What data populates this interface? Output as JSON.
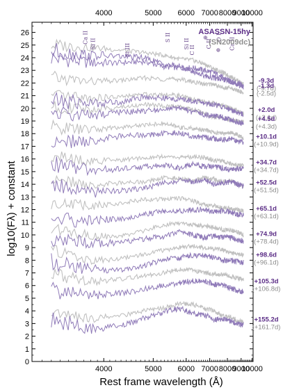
{
  "chart_data": {
    "type": "line",
    "title": "",
    "xlabel": "Rest frame wavelength (Å)",
    "ylabel": "log10(Fλ) + constant",
    "xlim": [
      3100,
      10100
    ],
    "ylim": [
      0,
      26.8
    ],
    "x_scale": "reciprocal",
    "x_ticks": [
      4000,
      5000,
      6000,
      7000,
      8000,
      9000,
      10000
    ],
    "x_tick_labels": [
      "4000",
      "5000",
      "6000",
      "7000",
      "8000",
      "9000",
      "10000"
    ],
    "y_ticks": [
      0,
      1,
      2,
      3,
      4,
      5,
      6,
      7,
      8,
      9,
      10,
      11,
      12,
      13,
      14,
      15,
      16,
      17,
      18,
      19,
      20,
      21,
      22,
      23,
      24,
      25,
      26
    ],
    "y_tick_labels": [
      "0",
      "1",
      "2",
      "3",
      "4",
      "5",
      "6",
      "7",
      "8",
      "9",
      "10",
      "11",
      "12",
      "13",
      "14",
      "15",
      "16",
      "17",
      "18",
      "19",
      "20",
      "21",
      "22",
      "23",
      "24",
      "25",
      "26"
    ],
    "grid": false,
    "legend": {
      "placement": "top-right",
      "entries": [
        {
          "label": "ASASSN-15hy",
          "color": "#5b2d86"
        },
        {
          "label": "(SN2009dc)",
          "color": "#8f8f8f"
        }
      ]
    },
    "line_ids": [
      {
        "label": "Ca II",
        "x": 3750
      },
      {
        "label": "Si II",
        "x": 3860
      },
      {
        "label": "Si III",
        "x": 4460
      },
      {
        "label": "S II",
        "x": 5450
      },
      {
        "label": "Si II",
        "x": 6080
      },
      {
        "label": "C II",
        "x": 6300
      },
      {
        "label": "⊕",
        "x": 6870
      },
      {
        "label": "C II",
        "x": 7050
      },
      {
        "label": "⊕",
        "x": 7550
      },
      {
        "label": "O I",
        "x": 7600
      },
      {
        "label": "Ca II",
        "x": 8460
      }
    ],
    "series": [
      {
        "name": "ASASSN-15hy -9.3d",
        "epoch": "-9.3d",
        "comparison": "(-9.7d)",
        "y": [
          24.0,
          23.6,
          23.6,
          23.7,
          23.3,
          23.2,
          23.2,
          23.0,
          22.8,
          22.4,
          22.1,
          22.0,
          21.8
        ]
      },
      {
        "name": "ASASSN-15hy -1.3d",
        "epoch": "-1.3d",
        "comparison": "(-2.5d)",
        "y": [
          24.5,
          24.2,
          24.1,
          24.0,
          23.5,
          23.3,
          22.9,
          22.6,
          22.4,
          22.3,
          22.1,
          21.9,
          21.7
        ]
      },
      {
        "name": "ASASSN-15hy +2.0d",
        "epoch": "+2.0d",
        "comparison": "(+2.1d)",
        "y": [
          20.6,
          20.4,
          20.5,
          20.9,
          20.8,
          20.7,
          20.6,
          20.4,
          20.3,
          20.1,
          19.9,
          19.7,
          19.5
        ]
      },
      {
        "name": "ASASSN-15hy +4.5d",
        "epoch": "+4.5d",
        "comparison": "(+4.3d)",
        "y": [
          19.6,
          19.4,
          19.7,
          19.8,
          19.9,
          20.0,
          19.7,
          19.5,
          19.4,
          19.3,
          19.1,
          18.9,
          18.8
        ]
      },
      {
        "name": "ASASSN-15hy +10.1d",
        "epoch": "+10.1d",
        "comparison": "(+10.9d)",
        "y": [
          17.3,
          17.4,
          17.8,
          17.9,
          18.0,
          18.1,
          17.8,
          17.7,
          17.6,
          17.5,
          17.6,
          17.4,
          17.3
        ]
      },
      {
        "name": "ASASSN-15hy +34.7d",
        "epoch": "+34.7d",
        "comparison": "(+34.7d)",
        "y": [
          15.6,
          15.1,
          15.2,
          15.4,
          15.5,
          15.3,
          15.6,
          15.4,
          15.4,
          15.3,
          15.1,
          15.2,
          15.3
        ]
      },
      {
        "name": "ASASSN-15hy +52.5d",
        "epoch": "+52.5d",
        "comparison": "(+51.5d)",
        "y": [
          14.1,
          13.3,
          13.5,
          13.7,
          14.1,
          14.3,
          14.2,
          14.3,
          14.0,
          14.1,
          14.2,
          14.0,
          13.8
        ]
      },
      {
        "name": "ASASSN-15hy +65.1d",
        "epoch": "+65.1d",
        "comparison": "(+63.1d)",
        "y": [
          11.2,
          11.1,
          11.3,
          11.6,
          11.9,
          11.9,
          12.0,
          12.0,
          11.8,
          11.9,
          11.8,
          11.6,
          11.6
        ]
      },
      {
        "name": "ASASSN-15hy +74.9d",
        "epoch": "+74.9d",
        "comparison": "(+78.4d)",
        "y": [
          9.8,
          9.3,
          9.4,
          9.7,
          9.9,
          10.2,
          10.0,
          9.8,
          9.9,
          9.8,
          9.8,
          9.6,
          9.5
        ]
      },
      {
        "name": "ASASSN-15hy +98.6d",
        "epoch": "+98.6d",
        "comparison": "(+96.1d)",
        "y": [
          7.9,
          7.3,
          7.2,
          7.6,
          8.0,
          8.2,
          8.4,
          8.3,
          8.2,
          8.0,
          8.0,
          7.9,
          7.8
        ]
      },
      {
        "name": "ASASSN-15hy +105.3d",
        "epoch": "+105.3d",
        "comparison": "(+106.8d)",
        "y": [
          5.6,
          5.2,
          5.4,
          5.7,
          6.0,
          6.2,
          6.4,
          6.3,
          6.1,
          6.0,
          5.8,
          5.6,
          5.5
        ]
      },
      {
        "name": "ASASSN-15hy +155.2d",
        "epoch": "+155.2d",
        "comparison": "(+161.7d)",
        "y": [
          3.3,
          2.6,
          2.8,
          3.4,
          3.9,
          4.2,
          3.8,
          3.7,
          3.3,
          3.4,
          3.2,
          3.0,
          2.9
        ]
      }
    ],
    "comparison_series": [
      {
        "y": [
          25.0,
          24.8,
          24.6,
          24.4,
          24.2,
          23.9,
          23.8,
          23.5,
          23.1,
          22.8,
          22.5,
          22.2,
          21.9
        ]
      },
      {
        "y": [
          22.4,
          22.1,
          22.2,
          22.4,
          22.3,
          22.3,
          22.1,
          21.9,
          21.9,
          21.6,
          21.6,
          21.4,
          21.2
        ]
      },
      {
        "y": [
          20.9,
          20.8,
          20.9,
          21.1,
          21.1,
          21.0,
          20.7,
          20.5,
          20.4,
          20.2,
          20.0,
          19.8,
          19.6
        ]
      },
      {
        "y": [
          20.1,
          19.9,
          20.1,
          20.3,
          20.2,
          20.1,
          19.9,
          19.6,
          19.3,
          19.2,
          19.1,
          19.0,
          18.9
        ]
      },
      {
        "y": [
          18.5,
          18.3,
          18.5,
          18.7,
          18.8,
          18.5,
          18.4,
          18.3,
          18.1,
          18.0,
          18.1,
          17.9,
          17.6
        ]
      },
      {
        "y": [
          16.2,
          15.8,
          15.9,
          16.1,
          16.2,
          16.1,
          16.2,
          16.1,
          15.9,
          15.8,
          15.6,
          15.5,
          15.5
        ]
      },
      {
        "y": [
          14.4,
          13.9,
          14.1,
          14.2,
          14.5,
          14.5,
          14.3,
          14.5,
          14.4,
          14.2,
          14.3,
          14.0,
          13.8
        ]
      },
      {
        "y": [
          12.6,
          12.3,
          12.5,
          12.8,
          12.8,
          12.9,
          12.7,
          12.4,
          12.3,
          12.1,
          12.1,
          12.0,
          11.9
        ]
      },
      {
        "y": [
          10.6,
          9.9,
          9.9,
          10.3,
          10.8,
          10.9,
          10.8,
          10.7,
          10.6,
          10.4,
          10.4,
          10.2,
          10.0
        ]
      },
      {
        "y": [
          8.8,
          8.0,
          8.1,
          8.5,
          8.8,
          9.0,
          9.1,
          9.0,
          8.9,
          8.8,
          8.6,
          8.5,
          8.4
        ]
      },
      {
        "y": [
          6.9,
          6.3,
          6.5,
          6.8,
          7.0,
          7.3,
          7.2,
          7.0,
          6.9,
          6.9,
          6.7,
          6.6,
          6.5
        ]
      },
      {
        "y": [
          4.0,
          3.4,
          3.6,
          4.0,
          4.2,
          4.6,
          4.5,
          4.2,
          4.0,
          3.6,
          3.5,
          3.2,
          3.1
        ]
      }
    ],
    "colors": {
      "main": "#8f7ab8",
      "comparison": "#c0c0c0",
      "main_label": "#5b2d86",
      "comparison_label": "#8c8c8c"
    }
  }
}
